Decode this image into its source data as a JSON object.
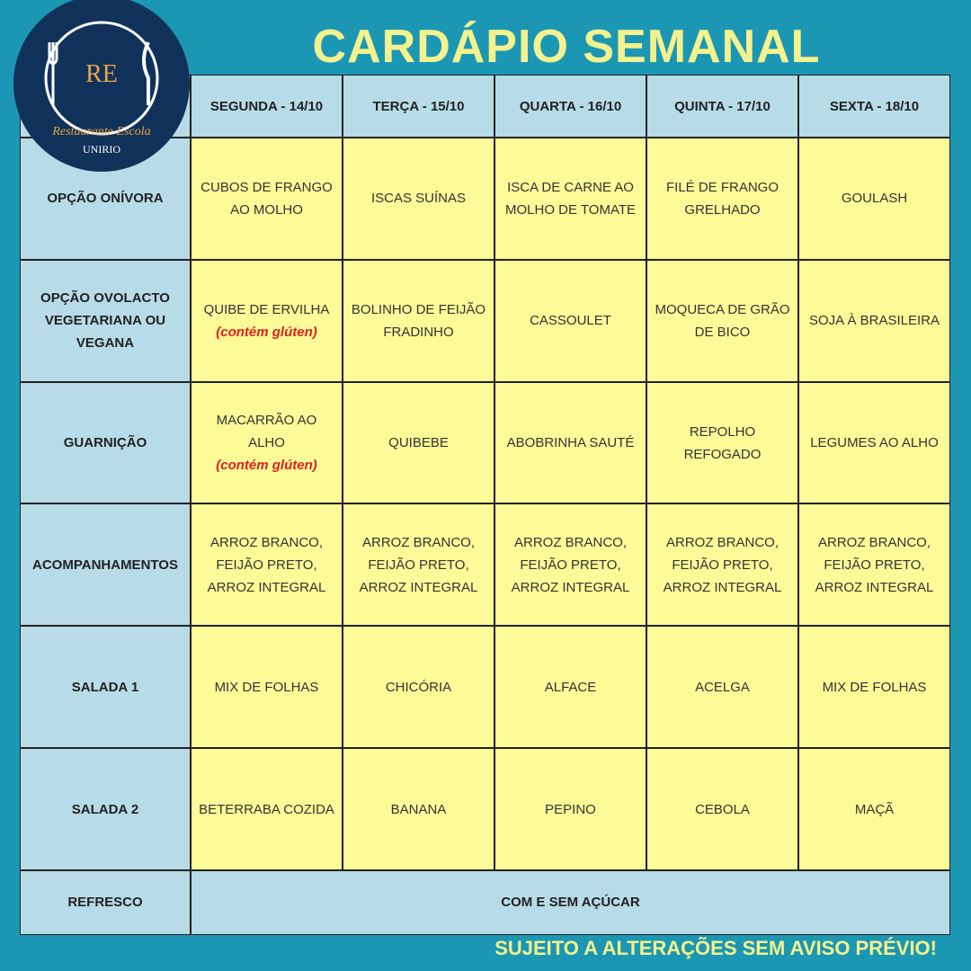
{
  "header": {
    "title": "CARDÁPIO SEMANAL"
  },
  "logo": {
    "initials": "RE",
    "name": "Restaurante Escola",
    "institution": "UNIRIO"
  },
  "table": {
    "columns": [
      "SEGUNDA - 14/10",
      "TERÇA - 15/10",
      "QUARTA - 16/10",
      "QUINTA - 17/10",
      "SEXTA - 18/10"
    ],
    "rows": [
      {
        "label": "OPÇÃO ONÍVORA",
        "cells": [
          "CUBOS DE FRANGO AO MOLHO",
          "ISCAS SUÍNAS",
          "ISCA DE CARNE AO MOLHO DE TOMATE",
          "FILÉ DE FRANGO GRELHADO",
          "GOULASH"
        ]
      },
      {
        "label": "OPÇÃO OVOLACTO VEGETARIANA OU VEGANA",
        "cells": [
          {
            "text": "QUIBE DE ERVILHA",
            "note": "(contém glúten)"
          },
          "BOLINHO DE FEIJÃO FRADINHO",
          "CASSOULET",
          "MOQUECA DE GRÃO DE BICO",
          "SOJA À BRASILEIRA"
        ]
      },
      {
        "label": "GUARNIÇÃO",
        "cells": [
          {
            "text": "MACARRÃO AO ALHO",
            "note": "(contém glúten)"
          },
          "QUIBEBE",
          "ABOBRINHA SAUTÉ",
          "REPOLHO REFOGADO",
          "LEGUMES AO ALHO"
        ]
      },
      {
        "label": "ACOMPANHAMENTOS",
        "cells": [
          "ARROZ BRANCO, FEIJÃO PRETO, ARROZ INTEGRAL",
          "ARROZ BRANCO, FEIJÃO PRETO, ARROZ INTEGRAL",
          "ARROZ BRANCO, FEIJÃO PRETO, ARROZ INTEGRAL",
          "ARROZ BRANCO, FEIJÃO PRETO, ARROZ INTEGRAL",
          "ARROZ BRANCO, FEIJÃO PRETO, ARROZ INTEGRAL"
        ]
      },
      {
        "label": "SALADA 1",
        "cells": [
          "MIX DE FOLHAS",
          "CHICÓRIA",
          "ALFACE",
          "ACELGA",
          "MIX DE FOLHAS"
        ]
      },
      {
        "label": "SALADA 2",
        "cells": [
          "BETERRABA COZIDA",
          "BANANA",
          "PEPINO",
          "CEBOLA",
          "MAÇÃ"
        ]
      },
      {
        "label": "REFRESCO",
        "cells": [
          "COM E SEM AÇÚCAR"
        ]
      }
    ]
  },
  "footer": "SUJEITO A ALTERAÇÕES SEM AVISO PRÉVIO!"
}
